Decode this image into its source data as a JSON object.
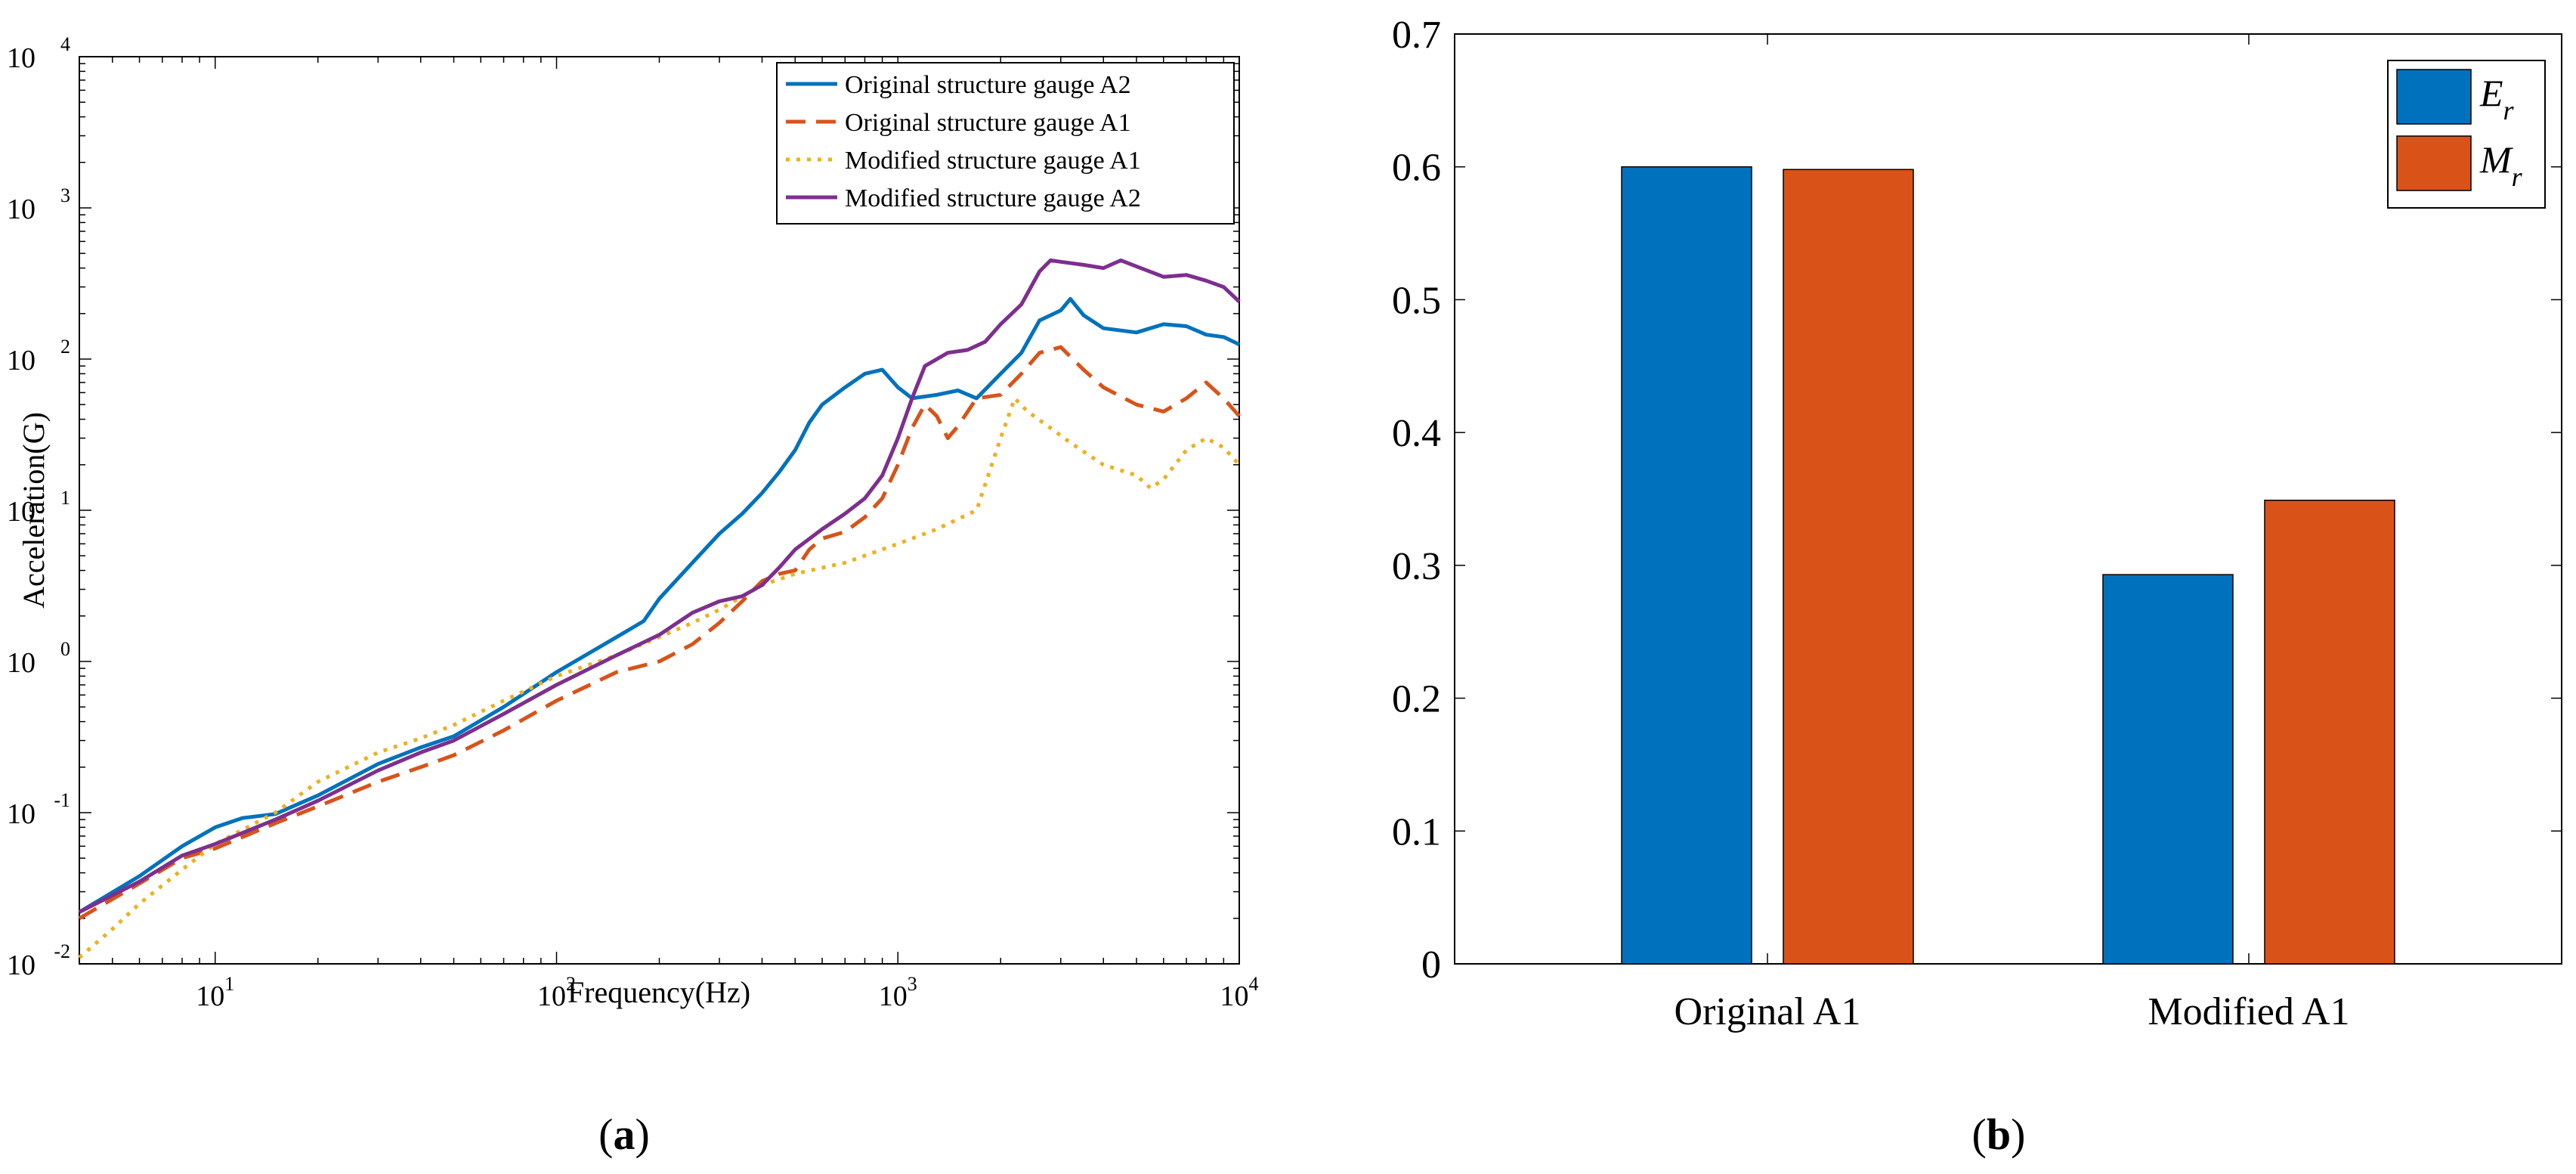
{
  "panel_a_caption": "a",
  "panel_b_caption": "b",
  "chart_data": [
    {
      "type": "line",
      "panel": "a",
      "xscale": "log",
      "yscale": "log",
      "xlabel": "Frequency(Hz)",
      "ylabel": "Acceleration(G)",
      "xlim": [
        4,
        10000
      ],
      "ylim": [
        0.01,
        10000
      ],
      "xticks": [
        {
          "value": 10,
          "base": "10",
          "exp": "1"
        },
        {
          "value": 100,
          "base": "10",
          "exp": "2"
        },
        {
          "value": 1000,
          "base": "10",
          "exp": "3"
        },
        {
          "value": 10000,
          "base": "10",
          "exp": "4"
        }
      ],
      "yticks": [
        {
          "value": 0.01,
          "base": "10",
          "exp": "-2"
        },
        {
          "value": 0.1,
          "base": "10",
          "exp": "-1"
        },
        {
          "value": 1,
          "base": "10",
          "exp": "0"
        },
        {
          "value": 10,
          "base": "10",
          "exp": "1"
        },
        {
          "value": 100,
          "base": "10",
          "exp": "2"
        },
        {
          "value": 1000,
          "base": "10",
          "exp": "3"
        },
        {
          "value": 10000,
          "base": "10",
          "exp": "4"
        }
      ],
      "legend_position": "top-right",
      "series": [
        {
          "name": "Original structure gauge A2",
          "color": "#0072BD",
          "dash": "solid",
          "points": [
            [
              4,
              0.022
            ],
            [
              6,
              0.038
            ],
            [
              8,
              0.06
            ],
            [
              10,
              0.08
            ],
            [
              12,
              0.092
            ],
            [
              15,
              0.098
            ],
            [
              20,
              0.13
            ],
            [
              30,
              0.21
            ],
            [
              40,
              0.27
            ],
            [
              50,
              0.32
            ],
            [
              70,
              0.5
            ],
            [
              100,
              0.85
            ],
            [
              150,
              1.45
            ],
            [
              180,
              1.85
            ],
            [
              200,
              2.6
            ],
            [
              250,
              4.5
            ],
            [
              300,
              7
            ],
            [
              350,
              9.5
            ],
            [
              400,
              13
            ],
            [
              450,
              18
            ],
            [
              500,
              25
            ],
            [
              550,
              38
            ],
            [
              600,
              50
            ],
            [
              700,
              65
            ],
            [
              800,
              80
            ],
            [
              900,
              85
            ],
            [
              1000,
              65
            ],
            [
              1100,
              55
            ],
            [
              1300,
              58
            ],
            [
              1500,
              62
            ],
            [
              1700,
              55
            ],
            [
              2000,
              80
            ],
            [
              2300,
              110
            ],
            [
              2600,
              180
            ],
            [
              3000,
              210
            ],
            [
              3200,
              250
            ],
            [
              3500,
              195
            ],
            [
              4000,
              160
            ],
            [
              5000,
              150
            ],
            [
              6000,
              170
            ],
            [
              7000,
              165
            ],
            [
              8000,
              145
            ],
            [
              9000,
              140
            ],
            [
              10000,
              125
            ]
          ]
        },
        {
          "name": "Original structure gauge A1",
          "color": "#D95319",
          "dash": "dashed",
          "points": [
            [
              4,
              0.02
            ],
            [
              6,
              0.034
            ],
            [
              8,
              0.05
            ],
            [
              10,
              0.058
            ],
            [
              15,
              0.085
            ],
            [
              20,
              0.11
            ],
            [
              30,
              0.16
            ],
            [
              40,
              0.2
            ],
            [
              50,
              0.24
            ],
            [
              70,
              0.35
            ],
            [
              100,
              0.55
            ],
            [
              150,
              0.85
            ],
            [
              200,
              1.0
            ],
            [
              250,
              1.3
            ],
            [
              300,
              1.8
            ],
            [
              350,
              2.5
            ],
            [
              400,
              3.4
            ],
            [
              450,
              3.8
            ],
            [
              500,
              4.0
            ],
            [
              550,
              5.5
            ],
            [
              600,
              6.5
            ],
            [
              700,
              7.2
            ],
            [
              800,
              9
            ],
            [
              900,
              12
            ],
            [
              1000,
              20
            ],
            [
              1100,
              35
            ],
            [
              1200,
              50
            ],
            [
              1300,
              42
            ],
            [
              1400,
              30
            ],
            [
              1500,
              36
            ],
            [
              1700,
              55
            ],
            [
              2000,
              58
            ],
            [
              2300,
              80
            ],
            [
              2600,
              110
            ],
            [
              3000,
              120
            ],
            [
              3500,
              85
            ],
            [
              4000,
              65
            ],
            [
              5000,
              50
            ],
            [
              6000,
              45
            ],
            [
              7000,
              55
            ],
            [
              8000,
              70
            ],
            [
              9000,
              55
            ],
            [
              10000,
              42
            ]
          ]
        },
        {
          "name": "Modified structure gauge A1",
          "color": "#EDB120",
          "dash": "dotted",
          "points": [
            [
              4,
              0.011
            ],
            [
              5,
              0.017
            ],
            [
              6,
              0.025
            ],
            [
              8,
              0.042
            ],
            [
              10,
              0.062
            ],
            [
              15,
              0.1
            ],
            [
              20,
              0.16
            ],
            [
              30,
              0.25
            ],
            [
              40,
              0.31
            ],
            [
              50,
              0.38
            ],
            [
              70,
              0.55
            ],
            [
              100,
              0.8
            ],
            [
              150,
              1.1
            ],
            [
              200,
              1.45
            ],
            [
              250,
              1.8
            ],
            [
              300,
              2.2
            ],
            [
              400,
              3.2
            ],
            [
              500,
              3.8
            ],
            [
              700,
              4.5
            ],
            [
              1000,
              6
            ],
            [
              1300,
              7.5
            ],
            [
              1700,
              10
            ],
            [
              2000,
              30
            ],
            [
              2200,
              55
            ],
            [
              2400,
              45
            ],
            [
              2800,
              35
            ],
            [
              3200,
              28
            ],
            [
              4000,
              20
            ],
            [
              5000,
              17
            ],
            [
              5500,
              14
            ],
            [
              6000,
              16
            ],
            [
              7000,
              25
            ],
            [
              8000,
              30
            ],
            [
              9000,
              26
            ],
            [
              10000,
              20
            ]
          ]
        },
        {
          "name": "Modified structure gauge A2",
          "color": "#7E2F8E",
          "dash": "solid",
          "points": [
            [
              4,
              0.022
            ],
            [
              6,
              0.035
            ],
            [
              8,
              0.052
            ],
            [
              10,
              0.062
            ],
            [
              15,
              0.09
            ],
            [
              20,
              0.12
            ],
            [
              30,
              0.19
            ],
            [
              40,
              0.25
            ],
            [
              50,
              0.3
            ],
            [
              70,
              0.45
            ],
            [
              100,
              0.7
            ],
            [
              150,
              1.1
            ],
            [
              200,
              1.5
            ],
            [
              250,
              2.1
            ],
            [
              300,
              2.5
            ],
            [
              350,
              2.7
            ],
            [
              400,
              3.2
            ],
            [
              450,
              4.2
            ],
            [
              500,
              5.5
            ],
            [
              600,
              7.5
            ],
            [
              700,
              9.5
            ],
            [
              800,
              12
            ],
            [
              900,
              17
            ],
            [
              1000,
              30
            ],
            [
              1100,
              55
            ],
            [
              1200,
              90
            ],
            [
              1400,
              110
            ],
            [
              1600,
              115
            ],
            [
              1800,
              130
            ],
            [
              2000,
              170
            ],
            [
              2300,
              230
            ],
            [
              2600,
              380
            ],
            [
              2800,
              450
            ],
            [
              3000,
              440
            ],
            [
              3500,
              420
            ],
            [
              4000,
              400
            ],
            [
              4500,
              450
            ],
            [
              5000,
              410
            ],
            [
              6000,
              350
            ],
            [
              7000,
              360
            ],
            [
              8000,
              330
            ],
            [
              9000,
              300
            ],
            [
              10000,
              240
            ]
          ]
        }
      ]
    },
    {
      "type": "bar",
      "panel": "b",
      "categories": [
        "Original A1",
        "Modified A1"
      ],
      "ylim": [
        0,
        0.7
      ],
      "yticks": [
        "0",
        "0.1",
        "0.2",
        "0.3",
        "0.4",
        "0.5",
        "0.6",
        "0.7"
      ],
      "legend_position": "top-right",
      "series": [
        {
          "name": "E",
          "subscript": "r",
          "color": "#0072BD",
          "values": [
            0.6,
            0.293
          ]
        },
        {
          "name": "M",
          "subscript": "r",
          "color": "#D95319",
          "values": [
            0.598,
            0.349
          ]
        }
      ]
    }
  ]
}
